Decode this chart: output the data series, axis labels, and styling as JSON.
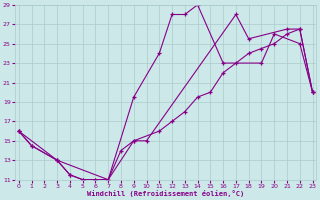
{
  "xlabel": "Windchill (Refroidissement éolien,°C)",
  "bg_color": "#cce8e8",
  "line_color": "#880088",
  "grid_color": "#aacccc",
  "x_min": 0,
  "x_max": 23,
  "y_min": 11,
  "y_max": 29,
  "x_ticks": [
    0,
    1,
    2,
    3,
    4,
    5,
    6,
    7,
    8,
    9,
    10,
    11,
    12,
    13,
    14,
    15,
    16,
    17,
    18,
    19,
    20,
    21,
    22,
    23
  ],
  "y_ticks": [
    11,
    13,
    15,
    17,
    19,
    21,
    23,
    25,
    27,
    29
  ],
  "line1_x": [
    0,
    1,
    3,
    4,
    5,
    6,
    7,
    9,
    11,
    12,
    13,
    14,
    16,
    19,
    20,
    22,
    23
  ],
  "line1_y": [
    16,
    14.5,
    13,
    11.5,
    11,
    11,
    11,
    19.5,
    24,
    28,
    28,
    29,
    23,
    23,
    26,
    25,
    20
  ],
  "line2_x": [
    0,
    1,
    3,
    4,
    5,
    6,
    7,
    8,
    9,
    11,
    12,
    13,
    14,
    15,
    16,
    17,
    18,
    19,
    20,
    21,
    22,
    23
  ],
  "line2_y": [
    16,
    14.5,
    13,
    11.5,
    11,
    11,
    11,
    14,
    15,
    16,
    17,
    18,
    19.5,
    20,
    22,
    23,
    24,
    24.5,
    25,
    26,
    26.5,
    20
  ],
  "line3_x": [
    0,
    3,
    7,
    9,
    10,
    17,
    18,
    21,
    22,
    23
  ],
  "line3_y": [
    16,
    13,
    11,
    15,
    15,
    28,
    25.5,
    26.5,
    26.5,
    20
  ]
}
